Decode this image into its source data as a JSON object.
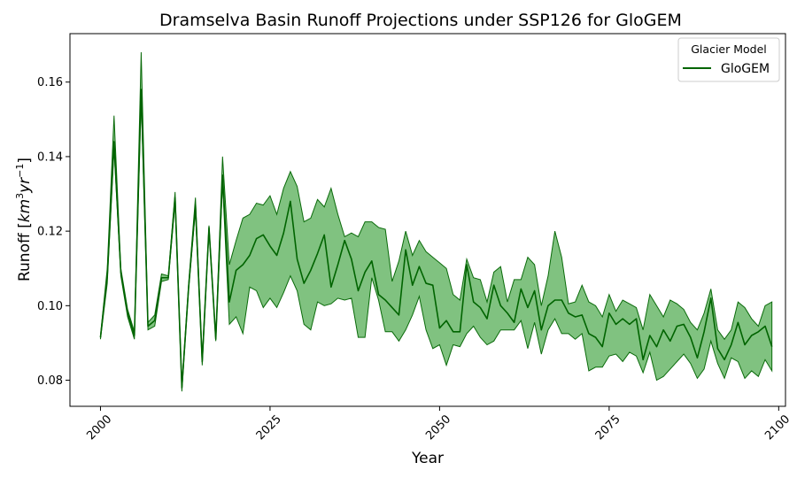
{
  "chart_data": {
    "type": "line",
    "title": "Dramselva Basin Runoff Projections under SSP126 for GloGEM",
    "xlabel": "Year",
    "ylabel_main": "Runoff [",
    "ylabel_unit_base": "km",
    "ylabel_unit_exp1": "3",
    "ylabel_unit_mid": "yr",
    "ylabel_unit_exp2": "−1",
    "ylabel_close": "]",
    "xlim": [
      1995.5,
      2101
    ],
    "ylim": [
      0.073,
      0.173
    ],
    "x_ticks": [
      2000,
      2025,
      2050,
      2075,
      2100
    ],
    "y_ticks": [
      0.08,
      0.1,
      0.12,
      0.14,
      0.16
    ],
    "y_tick_labels": [
      "0.08",
      "0.10",
      "0.12",
      "0.14",
      "0.16"
    ],
    "legend": {
      "title": "Glacier Model",
      "position": "upper right"
    },
    "colors": {
      "line": "#006400",
      "band": "#5cb15c"
    },
    "series": [
      {
        "name": "GloGEM",
        "x": [
          2000,
          2001,
          2002,
          2003,
          2004,
          2005,
          2006,
          2007,
          2008,
          2009,
          2010,
          2011,
          2012,
          2013,
          2014,
          2015,
          2016,
          2017,
          2018,
          2019,
          2020,
          2021,
          2022,
          2023,
          2024,
          2025,
          2026,
          2027,
          2028,
          2029,
          2030,
          2031,
          2032,
          2033,
          2034,
          2035,
          2036,
          2037,
          2038,
          2039,
          2040,
          2041,
          2042,
          2043,
          2044,
          2045,
          2046,
          2047,
          2048,
          2049,
          2050,
          2051,
          2052,
          2053,
          2054,
          2055,
          2056,
          2057,
          2058,
          2059,
          2060,
          2061,
          2062,
          2063,
          2064,
          2065,
          2066,
          2067,
          2068,
          2069,
          2070,
          2071,
          2072,
          2073,
          2074,
          2075,
          2076,
          2077,
          2078,
          2079,
          2080,
          2081,
          2082,
          2083,
          2084,
          2085,
          2086,
          2087,
          2088,
          2089,
          2090,
          2091,
          2092,
          2093,
          2094,
          2095,
          2096,
          2097,
          2098,
          2099
        ],
        "median": [
          0.0915,
          0.108,
          0.144,
          0.109,
          0.098,
          0.092,
          0.158,
          0.0945,
          0.096,
          0.1075,
          0.1075,
          0.129,
          0.078,
          0.105,
          0.127,
          0.085,
          0.121,
          0.091,
          0.135,
          0.101,
          0.1095,
          0.111,
          0.1135,
          0.118,
          0.119,
          0.116,
          0.1135,
          0.1195,
          0.128,
          0.1125,
          0.106,
          0.1095,
          0.114,
          0.119,
          0.105,
          0.111,
          0.1175,
          0.1125,
          0.104,
          0.109,
          0.112,
          0.103,
          0.1015,
          0.0995,
          0.0975,
          0.115,
          0.1055,
          0.1105,
          0.106,
          0.1055,
          0.094,
          0.096,
          0.093,
          0.093,
          0.111,
          0.101,
          0.0995,
          0.0965,
          0.1055,
          0.1,
          0.098,
          0.0955,
          0.1045,
          0.0995,
          0.104,
          0.0935,
          0.1,
          0.1015,
          0.1015,
          0.098,
          0.097,
          0.0975,
          0.0925,
          0.0915,
          0.089,
          0.098,
          0.095,
          0.0965,
          0.095,
          0.0965,
          0.0855,
          0.092,
          0.089,
          0.0935,
          0.0905,
          0.0945,
          0.095,
          0.0915,
          0.086,
          0.093,
          0.102,
          0.0885,
          0.0855,
          0.0895,
          0.0955,
          0.0895,
          0.092,
          0.093,
          0.0945,
          0.089
        ],
        "lower": [
          0.091,
          0.106,
          0.142,
          0.108,
          0.097,
          0.091,
          0.156,
          0.0935,
          0.0945,
          0.1065,
          0.107,
          0.1275,
          0.077,
          0.1045,
          0.1255,
          0.084,
          0.12,
          0.0905,
          0.133,
          0.095,
          0.097,
          0.0925,
          0.105,
          0.104,
          0.0995,
          0.102,
          0.0995,
          0.1035,
          0.108,
          0.104,
          0.095,
          0.0935,
          0.101,
          0.1,
          0.1005,
          0.102,
          0.1015,
          0.102,
          0.0915,
          0.0915,
          0.1075,
          0.1015,
          0.093,
          0.093,
          0.0905,
          0.0935,
          0.0975,
          0.1025,
          0.0935,
          0.0885,
          0.0895,
          0.084,
          0.0895,
          0.089,
          0.0925,
          0.0945,
          0.0915,
          0.0895,
          0.0905,
          0.0935,
          0.0935,
          0.0935,
          0.096,
          0.0885,
          0.0955,
          0.087,
          0.0935,
          0.0965,
          0.0925,
          0.0925,
          0.091,
          0.0925,
          0.0825,
          0.0835,
          0.0835,
          0.0865,
          0.087,
          0.085,
          0.0875,
          0.0865,
          0.082,
          0.0875,
          0.08,
          0.081,
          0.083,
          0.085,
          0.087,
          0.0845,
          0.0805,
          0.083,
          0.0905,
          0.0845,
          0.0805,
          0.086,
          0.085,
          0.0805,
          0.0825,
          0.081,
          0.0855,
          0.0825
        ],
        "upper": [
          0.092,
          0.11,
          0.151,
          0.11,
          0.099,
          0.093,
          0.168,
          0.0955,
          0.0975,
          0.1085,
          0.108,
          0.1305,
          0.079,
          0.106,
          0.129,
          0.086,
          0.1215,
          0.0915,
          0.14,
          0.111,
          0.1175,
          0.1235,
          0.1245,
          0.1275,
          0.127,
          0.1295,
          0.1245,
          0.1315,
          0.136,
          0.132,
          0.1225,
          0.1235,
          0.1285,
          0.1265,
          0.1315,
          0.1245,
          0.1185,
          0.1195,
          0.1185,
          0.1225,
          0.1225,
          0.121,
          0.1205,
          0.1065,
          0.112,
          0.12,
          0.1135,
          0.1175,
          0.1145,
          0.113,
          0.1115,
          0.11,
          0.103,
          0.1015,
          0.1125,
          0.1075,
          0.107,
          0.101,
          0.109,
          0.1105,
          0.101,
          0.107,
          0.107,
          0.113,
          0.111,
          0.1,
          0.108,
          0.12,
          0.113,
          0.1005,
          0.101,
          0.1055,
          0.101,
          0.1,
          0.097,
          0.103,
          0.0985,
          0.1015,
          0.1005,
          0.0995,
          0.0935,
          0.103,
          0.1,
          0.097,
          0.1015,
          0.1005,
          0.099,
          0.0955,
          0.0935,
          0.098,
          0.1045,
          0.0935,
          0.091,
          0.0935,
          0.101,
          0.0995,
          0.0965,
          0.0945,
          0.1,
          0.101
        ]
      }
    ]
  }
}
